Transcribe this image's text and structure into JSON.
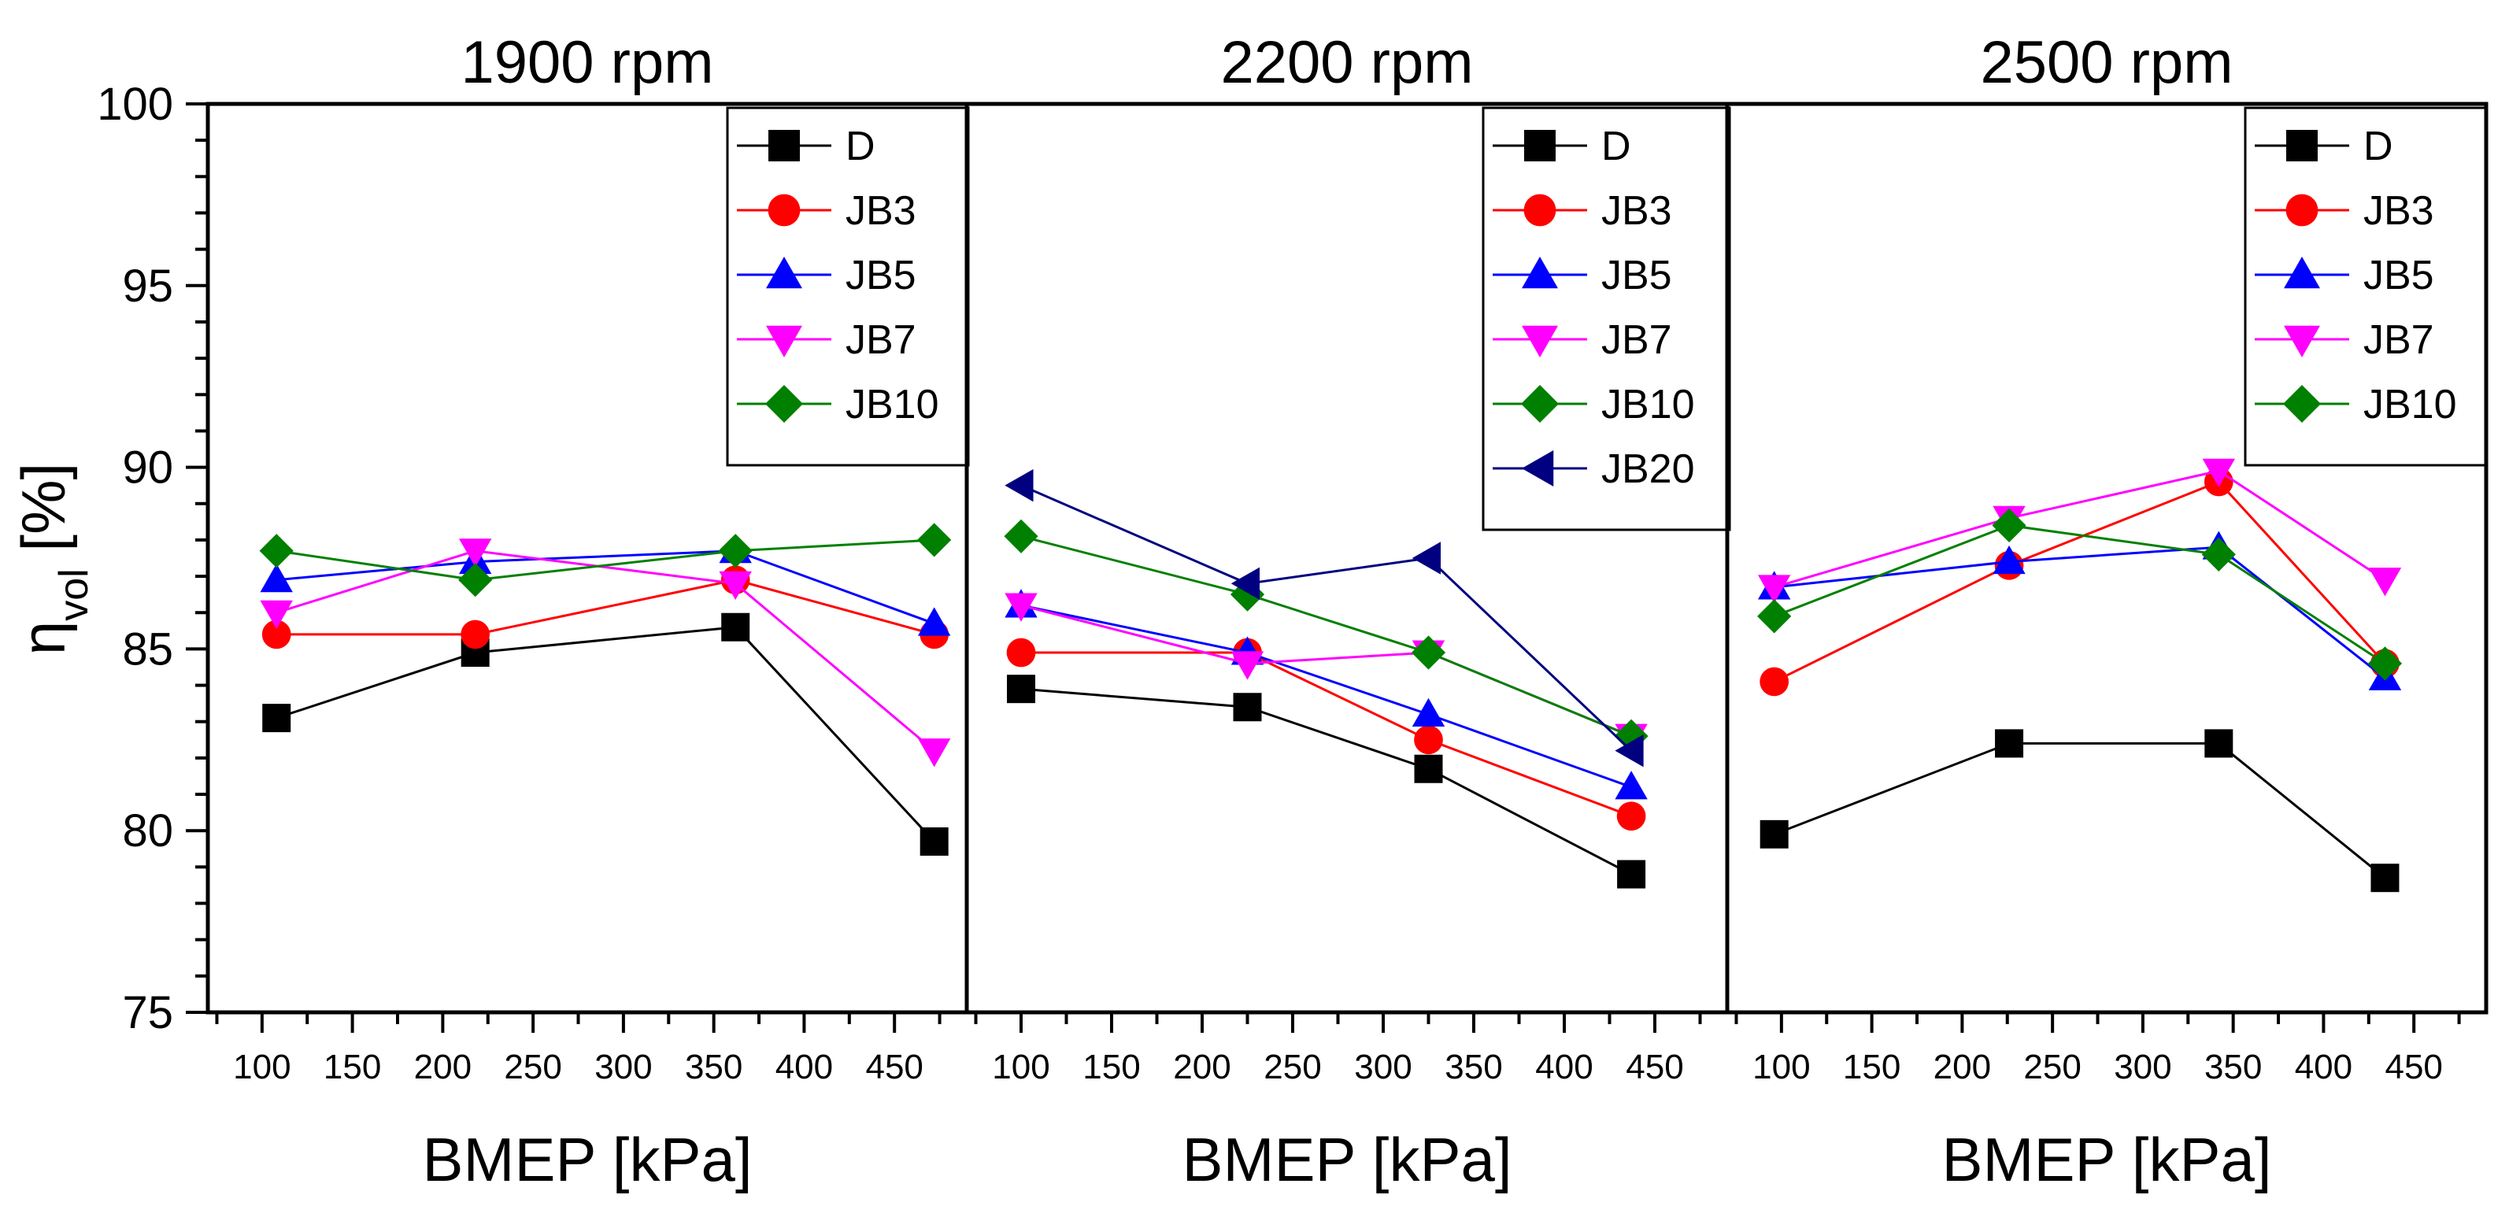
{
  "chart_data": [
    {
      "type": "line",
      "title": "1900 rpm",
      "xlabel": "BMEP [kPa]",
      "ylabel": "η_vol [%]",
      "ylabel_main": "η",
      "ylabel_sub": "vol",
      "ylabel_unit": " [%]",
      "xlim": [
        70,
        490
      ],
      "ylim": [
        75,
        100
      ],
      "xticks": [
        100,
        150,
        200,
        250,
        300,
        350,
        400,
        450
      ],
      "yticks": [
        75,
        80,
        85,
        90,
        95,
        100
      ],
      "legend_position": "top-right",
      "series": [
        {
          "name": "D",
          "marker": "square",
          "color": "#000000",
          "x": [
            108,
            218,
            362,
            472
          ],
          "y": [
            83.1,
            84.9,
            85.6,
            79.7
          ]
        },
        {
          "name": "JB3",
          "marker": "circle",
          "color": "#ff0000",
          "x": [
            108,
            218,
            362,
            472
          ],
          "y": [
            85.4,
            85.4,
            86.9,
            85.4
          ]
        },
        {
          "name": "JB5",
          "marker": "triangle-up",
          "color": "#0000ff",
          "x": [
            108,
            218,
            362,
            472
          ],
          "y": [
            86.9,
            87.4,
            87.7,
            85.7
          ]
        },
        {
          "name": "JB7",
          "marker": "triangle-down",
          "color": "#ff00ff",
          "x": [
            108,
            218,
            362,
            472
          ],
          "y": [
            86.0,
            87.7,
            86.8,
            82.2
          ]
        },
        {
          "name": "JB10",
          "marker": "diamond",
          "color": "#008000",
          "x": [
            108,
            218,
            362,
            472
          ],
          "y": [
            87.7,
            86.9,
            87.7,
            88.0
          ]
        }
      ]
    },
    {
      "type": "line",
      "title": "2200 rpm",
      "xlabel": "BMEP [kPa]",
      "xlim": [
        70,
        490
      ],
      "ylim": [
        75,
        100
      ],
      "xticks": [
        100,
        150,
        200,
        250,
        300,
        350,
        400,
        450
      ],
      "legend_position": "top-right",
      "series": [
        {
          "name": "D",
          "marker": "square",
          "color": "#000000",
          "x": [
            100,
            225,
            325,
            437
          ],
          "y": [
            83.9,
            83.4,
            81.7,
            78.8
          ]
        },
        {
          "name": "JB3",
          "marker": "circle",
          "color": "#ff0000",
          "x": [
            100,
            225,
            325,
            437
          ],
          "y": [
            84.9,
            84.9,
            82.5,
            80.4
          ]
        },
        {
          "name": "JB5",
          "marker": "triangle-up",
          "color": "#0000ff",
          "x": [
            100,
            225,
            325,
            437
          ],
          "y": [
            86.2,
            84.9,
            83.2,
            81.2
          ]
        },
        {
          "name": "JB7",
          "marker": "triangle-down",
          "color": "#ff00ff",
          "x": [
            100,
            225,
            325,
            437
          ],
          "y": [
            86.2,
            84.6,
            84.9,
            82.6
          ]
        },
        {
          "name": "JB10",
          "marker": "diamond",
          "color": "#008000",
          "x": [
            100,
            225,
            325,
            437
          ],
          "y": [
            88.1,
            86.5,
            84.9,
            82.6
          ]
        },
        {
          "name": "JB20",
          "marker": "triangle-left",
          "color": "#000080",
          "x": [
            100,
            225,
            325,
            437
          ],
          "y": [
            89.5,
            86.8,
            87.5,
            82.2
          ]
        }
      ]
    },
    {
      "type": "line",
      "title": "2500 rpm",
      "xlabel": "BMEP [kPa]",
      "xlim": [
        70,
        490
      ],
      "ylim": [
        75,
        100
      ],
      "xticks": [
        100,
        150,
        200,
        250,
        300,
        350,
        400,
        450
      ],
      "legend_position": "top-right",
      "series": [
        {
          "name": "D",
          "marker": "square",
          "color": "#000000",
          "x": [
            96,
            226,
            342,
            434
          ],
          "y": [
            79.9,
            82.4,
            82.4,
            78.7
          ]
        },
        {
          "name": "JB3",
          "marker": "circle",
          "color": "#ff0000",
          "x": [
            96,
            226,
            342,
            434
          ],
          "y": [
            84.1,
            87.3,
            89.6,
            84.6
          ]
        },
        {
          "name": "JB5",
          "marker": "triangle-up",
          "color": "#0000ff",
          "x": [
            96,
            226,
            342,
            434
          ],
          "y": [
            86.7,
            87.4,
            87.8,
            84.2
          ]
        },
        {
          "name": "JB7",
          "marker": "triangle-down",
          "color": "#ff00ff",
          "x": [
            96,
            226,
            342,
            434
          ],
          "y": [
            86.7,
            88.6,
            89.9,
            86.9
          ]
        },
        {
          "name": "JB10",
          "marker": "diamond",
          "color": "#008000",
          "x": [
            96,
            226,
            342,
            434
          ],
          "y": [
            85.9,
            88.4,
            87.6,
            84.6
          ]
        }
      ]
    }
  ]
}
